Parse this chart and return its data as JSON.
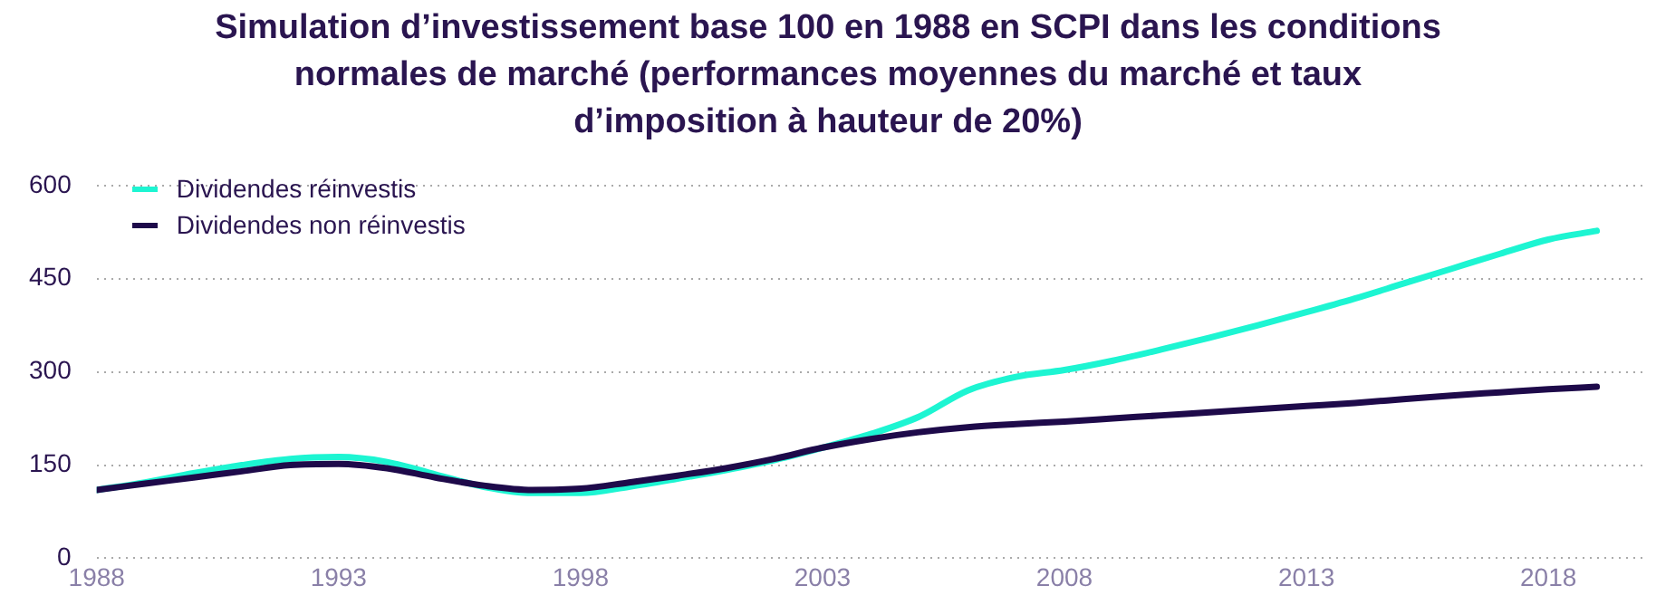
{
  "chart_data": {
    "type": "line",
    "title": "Simulation d’investissement base 100 en 1988 en SCPI dans les conditions normales de marché (performances moyennes du marché et taux d’imposition à hauteur de 20%)",
    "x": [
      1988,
      1989,
      1990,
      1991,
      1992,
      1993,
      1994,
      1995,
      1996,
      1997,
      1998,
      1999,
      2000,
      2001,
      2002,
      2003,
      2004,
      2005,
      2006,
      2007,
      2008,
      2009,
      2010,
      2011,
      2012,
      2013,
      2014,
      2015,
      2016,
      2017,
      2018,
      2019
    ],
    "series": [
      {
        "name": "Dividendes réinvestis",
        "color": "#1df5d2",
        "values": [
          110,
          122,
          137,
          150,
          160,
          163,
          155,
          135,
          115,
          105,
          105,
          115,
          128,
          142,
          158,
          178,
          200,
          228,
          270,
          292,
          303,
          318,
          336,
          355,
          375,
          396,
          418,
          442,
          466,
          490,
          513,
          527
        ]
      },
      {
        "name": "Dividendes non réinvestis",
        "color": "#1e0a4a",
        "values": [
          110,
          120,
          130,
          140,
          150,
          152,
          145,
          130,
          117,
          110,
          112,
          122,
          133,
          145,
          160,
          178,
          192,
          203,
          211,
          216,
          220,
          225,
          230,
          235,
          240,
          245,
          250,
          256,
          262,
          267,
          272,
          276
        ]
      }
    ],
    "xlim": [
      1988,
      2020
    ],
    "xticks": [
      1988,
      1993,
      1998,
      2003,
      2008,
      2013,
      2018
    ],
    "ylim": [
      0,
      600
    ],
    "yticks": [
      0,
      150,
      300,
      450,
      600
    ],
    "grid": "y",
    "legend": "top left",
    "marker": "none",
    "line_style": "solid"
  }
}
